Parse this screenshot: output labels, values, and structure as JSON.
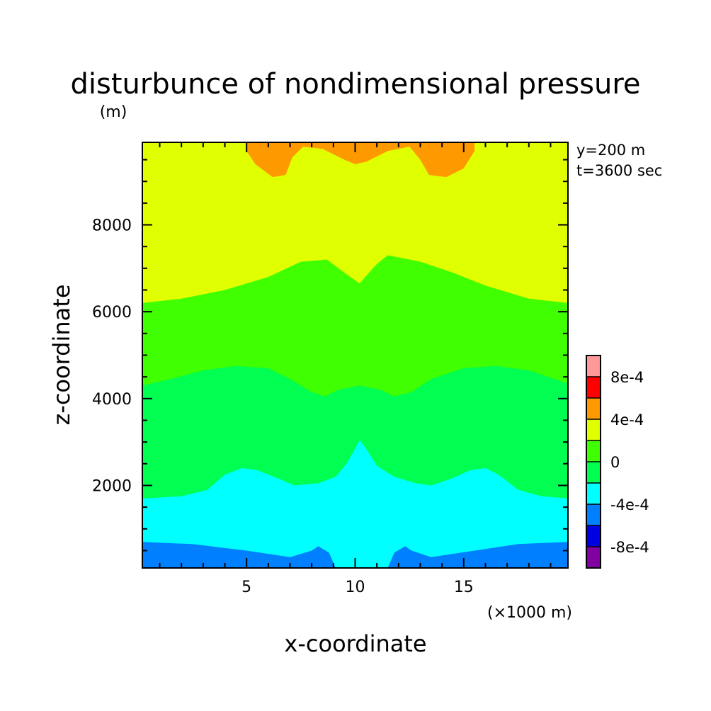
{
  "chart_data": {
    "type": "heatmap",
    "title": "disturbunce of nondimensional pressure",
    "xlabel": "x-coordinate",
    "ylabel": "z-coordinate",
    "x_unit": "(×1000 m)",
    "y_unit": "(m)",
    "annotations": [
      "y=200 m",
      "t=3600 sec"
    ],
    "xlim": [
      0.2,
      19.8
    ],
    "ylim": [
      100,
      9900
    ],
    "x_ticks": [
      5,
      10,
      15
    ],
    "y_ticks": [
      2000,
      4000,
      6000,
      8000
    ],
    "x_tick_labels": [
      "5",
      "10",
      "15"
    ],
    "y_tick_labels": [
      "2000",
      "4000",
      "6000",
      "8000"
    ],
    "legend": {
      "placement": "right",
      "levels": [
        {
          "range": [
            -0.001,
            -0.0008
          ],
          "color": "#8000a0"
        },
        {
          "range": [
            -0.0008,
            -0.0006
          ],
          "color": "#0000e0"
        },
        {
          "range": [
            -0.0006,
            -0.0004
          ],
          "color": "#0080ff"
        },
        {
          "range": [
            -0.0004,
            -0.0002
          ],
          "color": "#00ffff"
        },
        {
          "range": [
            -0.0002,
            0
          ],
          "color": "#00ff50"
        },
        {
          "range": [
            0,
            0.0002
          ],
          "color": "#40ff00"
        },
        {
          "range": [
            0.0002,
            0.0004
          ],
          "color": "#e0ff00"
        },
        {
          "range": [
            0.0004,
            0.0006
          ],
          "color": "#ff9900"
        },
        {
          "range": [
            0.0006,
            0.0008
          ],
          "color": "#ff0000"
        },
        {
          "range": [
            0.0008,
            0.001
          ],
          "color": "#ff9999"
        }
      ],
      "tick_labels": [
        {
          "value": 0.0008,
          "label": "8e-4"
        },
        {
          "value": 0.0004,
          "label": "4e-4"
        },
        {
          "value": 0,
          "label": "0"
        },
        {
          "value": -0.0004,
          "label": "-4e-4"
        },
        {
          "value": -0.0008,
          "label": "-8e-4"
        }
      ]
    },
    "fill_color": "#e0ff00",
    "regions": [
      {
        "name": "band-0-to-2e-4",
        "color": "#40ff00",
        "upper": [
          [
            0.2,
            6200
          ],
          [
            2,
            6300
          ],
          [
            4,
            6500
          ],
          [
            6,
            6800
          ],
          [
            7.5,
            7150
          ],
          [
            8.7,
            7200
          ],
          [
            9.5,
            6900
          ],
          [
            10.2,
            6650
          ],
          [
            11,
            7100
          ],
          [
            11.5,
            7300
          ],
          [
            13,
            7150
          ],
          [
            14.5,
            6900
          ],
          [
            16,
            6600
          ],
          [
            18,
            6300
          ],
          [
            19.8,
            6200
          ]
        ]
      },
      {
        "name": "band-minus-2e-4-to-0",
        "color": "#00ff50",
        "upper": [
          [
            0.2,
            4300
          ],
          [
            1.5,
            4450
          ],
          [
            3,
            4650
          ],
          [
            4.5,
            4750
          ],
          [
            6,
            4700
          ],
          [
            7,
            4450
          ],
          [
            8,
            4150
          ],
          [
            8.6,
            4050
          ],
          [
            9.2,
            4200
          ],
          [
            10.2,
            4300
          ],
          [
            11.2,
            4200
          ],
          [
            11.8,
            4050
          ],
          [
            12.6,
            4150
          ],
          [
            13.5,
            4450
          ],
          [
            15,
            4700
          ],
          [
            16.5,
            4750
          ],
          [
            18,
            4650
          ],
          [
            19.8,
            4350
          ]
        ]
      },
      {
        "name": "band-minus-4e-4-to-minus-2e-4",
        "color": "#00ffff",
        "upper": [
          [
            0.2,
            1700
          ],
          [
            2,
            1750
          ],
          [
            3.2,
            1900
          ],
          [
            4,
            2250
          ],
          [
            4.8,
            2400
          ],
          [
            5.5,
            2350
          ],
          [
            6.5,
            2150
          ],
          [
            7.2,
            2000
          ],
          [
            8.3,
            2050
          ],
          [
            9.1,
            2200
          ],
          [
            9.6,
            2500
          ],
          [
            10,
            2850
          ],
          [
            10.2,
            3050
          ],
          [
            10.5,
            2850
          ],
          [
            11,
            2450
          ],
          [
            11.8,
            2200
          ],
          [
            12.8,
            2050
          ],
          [
            13.5,
            2000
          ],
          [
            14.4,
            2150
          ],
          [
            15.3,
            2350
          ],
          [
            16,
            2400
          ],
          [
            16.6,
            2250
          ],
          [
            17.5,
            1900
          ],
          [
            18.6,
            1750
          ],
          [
            19.8,
            1700
          ]
        ]
      },
      {
        "name": "band-minus-6e-4-left",
        "color": "#0080ff",
        "upper": [
          [
            0.2,
            700
          ],
          [
            2.5,
            650
          ],
          [
            5,
            500
          ],
          [
            7,
            350
          ],
          [
            8,
            500
          ],
          [
            8.3,
            600
          ],
          [
            8.8,
            450
          ],
          [
            9.1,
            100
          ]
        ]
      },
      {
        "name": "band-minus-6e-4-right",
        "color": "#0080ff",
        "upper": [
          [
            11.5,
            100
          ],
          [
            11.8,
            450
          ],
          [
            12.3,
            600
          ],
          [
            12.6,
            500
          ],
          [
            13.5,
            350
          ],
          [
            15.5,
            500
          ],
          [
            17.5,
            650
          ],
          [
            19.8,
            700
          ]
        ]
      },
      {
        "name": "band-4e-4-to-6e-4",
        "color": "#ff9900",
        "lower": [
          [
            5,
            9900
          ],
          [
            5,
            9700
          ],
          [
            5.4,
            9400
          ],
          [
            6.2,
            9100
          ],
          [
            6.8,
            9150
          ],
          [
            7.1,
            9550
          ],
          [
            7.6,
            9800
          ],
          [
            8.5,
            9750
          ],
          [
            9.5,
            9500
          ],
          [
            10,
            9400
          ],
          [
            10.5,
            9450
          ],
          [
            11.5,
            9700
          ],
          [
            12.5,
            9800
          ],
          [
            13,
            9500
          ],
          [
            13.4,
            9150
          ],
          [
            14.2,
            9100
          ],
          [
            15,
            9300
          ],
          [
            15.5,
            9700
          ],
          [
            15.5,
            9900
          ]
        ]
      }
    ]
  }
}
